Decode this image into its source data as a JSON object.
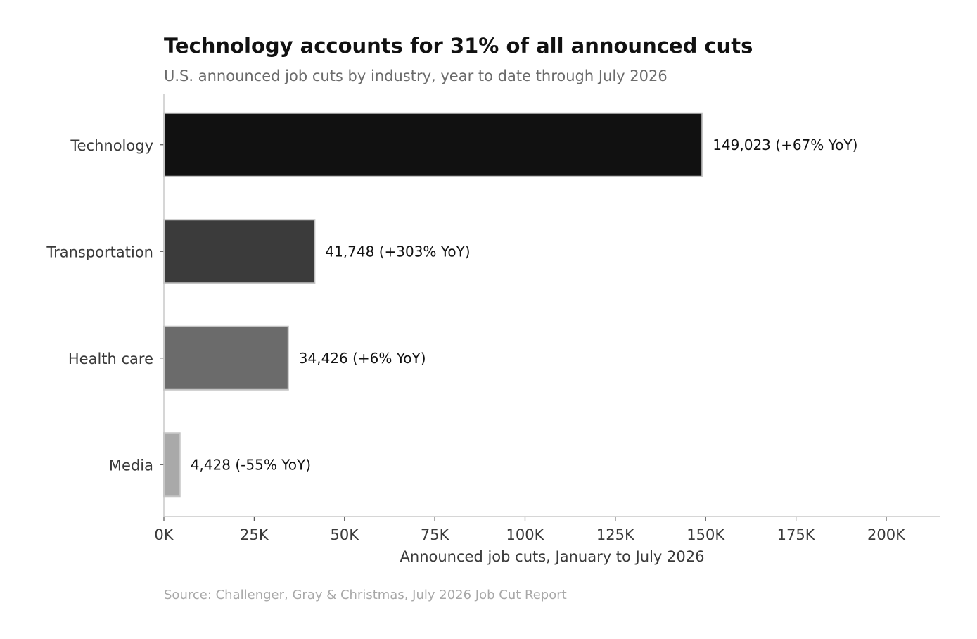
{
  "chart_data": {
    "type": "bar",
    "orientation": "horizontal",
    "title": "Technology accounts for 31% of all announced cuts",
    "subtitle": "U.S. announced job cuts by industry, year to date through July 2026",
    "xlabel": "Announced job cuts, January to July 2026",
    "ylabel": "",
    "source": "Source: Challenger, Gray & Christmas, July 2026 Job Cut Report",
    "categories": [
      "Technology",
      "Transportation",
      "Health care",
      "Media"
    ],
    "values": [
      149023,
      41748,
      34426,
      4428
    ],
    "value_labels": [
      "149,023   (+67% YoY)",
      "41,748   (+303% YoY)",
      "34,426   (+6% YoY)",
      "4,428   (-55% YoY)"
    ],
    "yoy_change_pct": [
      67,
      303,
      6,
      -55
    ],
    "bar_colors": [
      "#111111",
      "#3b3b3b",
      "#6b6b6b",
      "#a9a9a9"
    ],
    "xlim": [
      0,
      215000
    ],
    "xticks": [
      0,
      25000,
      50000,
      75000,
      100000,
      125000,
      150000,
      175000,
      200000
    ],
    "xtick_labels": [
      "0K",
      "25K",
      "50K",
      "75K",
      "100K",
      "125K",
      "150K",
      "175K",
      "200K"
    ],
    "grid": false,
    "legend": "none"
  }
}
